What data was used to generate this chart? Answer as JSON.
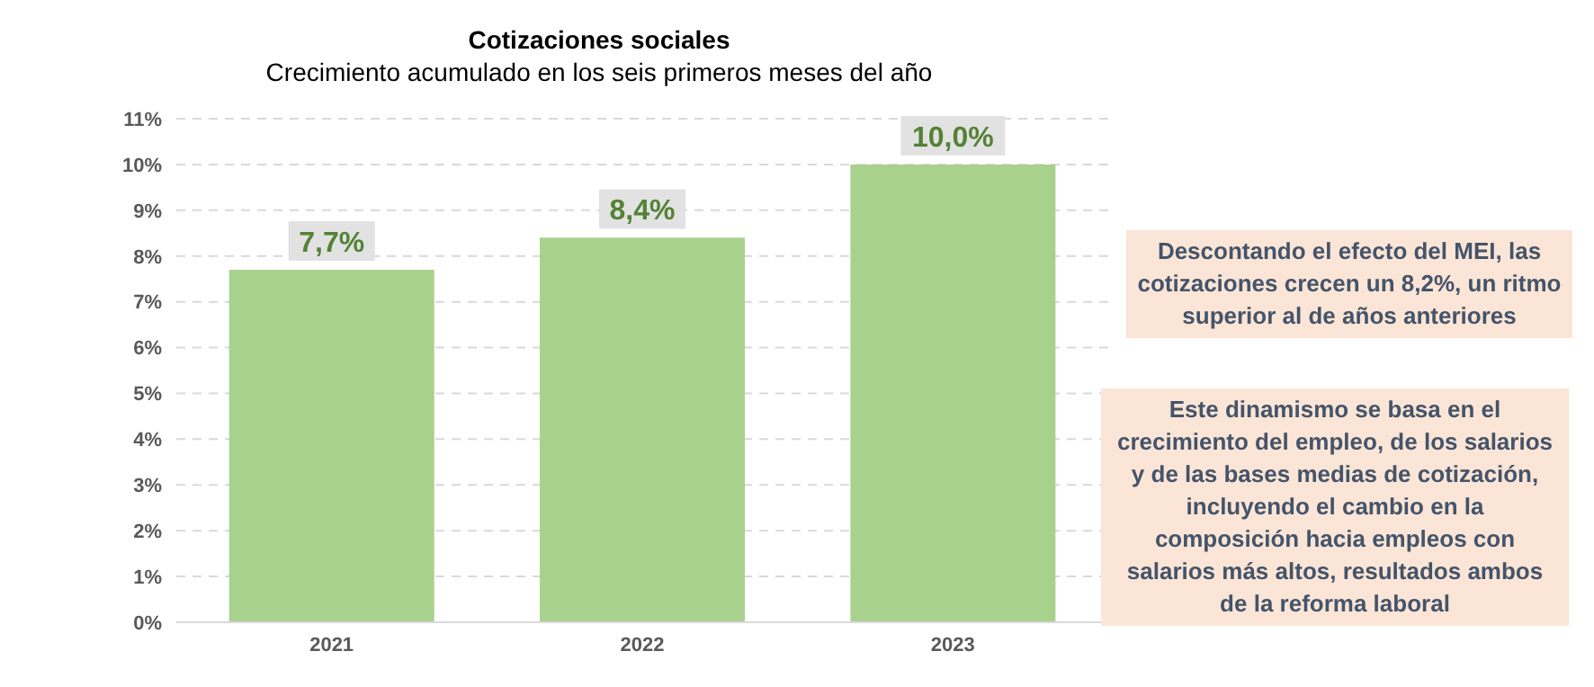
{
  "chart_data": {
    "type": "bar",
    "title": "Cotizaciones sociales",
    "subtitle": "Crecimiento acumulado en los seis primeros meses del año",
    "categories": [
      "2021",
      "2022",
      "2023"
    ],
    "values": [
      7.7,
      8.4,
      10.0
    ],
    "color": "#a9d18e",
    "value_labels": [
      "7,7%",
      "8,4%",
      "10,0%"
    ],
    "ylim": [
      0,
      11
    ],
    "yticks": [
      {
        "value": 0,
        "label": "0%"
      },
      {
        "value": 1,
        "label": "1%"
      },
      {
        "value": 2,
        "label": "2%"
      },
      {
        "value": 3,
        "label": "3%"
      },
      {
        "value": 4,
        "label": "4%"
      },
      {
        "value": 5,
        "label": "5%"
      },
      {
        "value": 6,
        "label": "6%"
      },
      {
        "value": 7,
        "label": "7%"
      },
      {
        "value": 8,
        "label": "8%"
      },
      {
        "value": 9,
        "label": "9%"
      },
      {
        "value": 10,
        "label": "10%"
      },
      {
        "value": 11,
        "label": "11%"
      }
    ],
    "grid": "y",
    "legend": false,
    "annotations": [
      "Descontando el efecto del MEI, las cotizaciones crecen un 8,2%, un ritmo superior al de años anteriores",
      "Este dinamismo se basa en el crecimiento del empleo, de los salarios  y de las bases medias de cotización, incluyendo el cambio en la composición hacia empleos con salarios más altos, resultados ambos  de la reforma laboral"
    ]
  }
}
